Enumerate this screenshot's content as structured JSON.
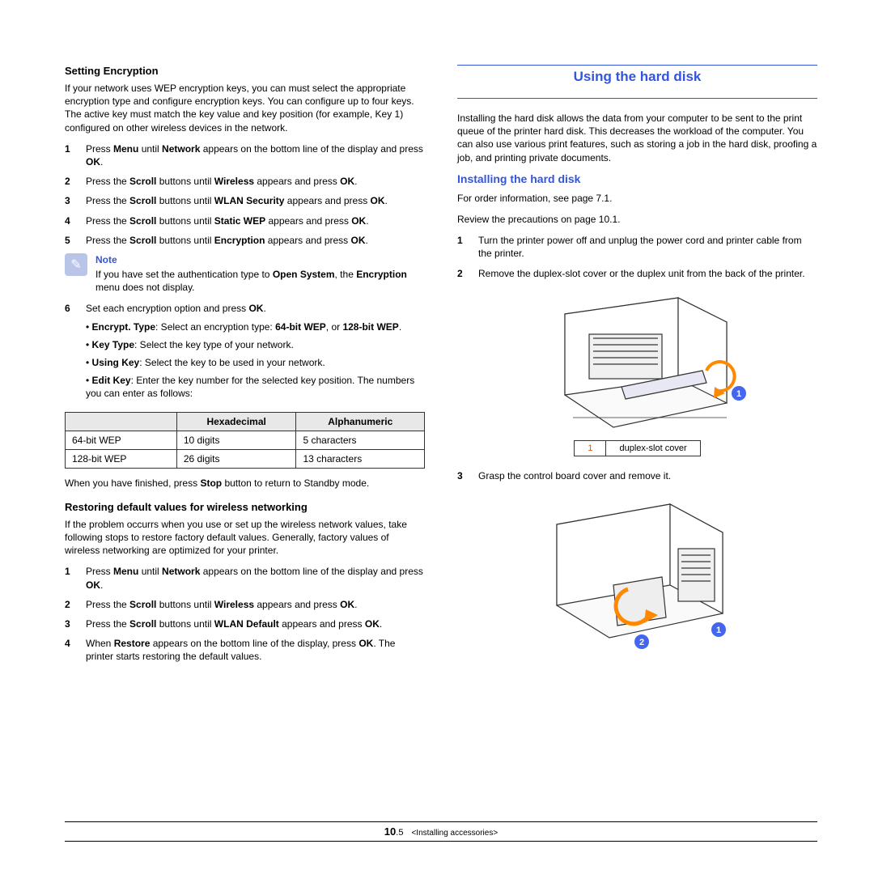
{
  "left": {
    "h_encryption": "Setting Encryption",
    "p_encryption": "If your network uses WEP encryption keys, you can must select the appropriate encryption type and configure encryption keys. You can configure up to four keys. The active key must match the key value and key position (for example, Key 1) configured on other wireless devices in the network.",
    "steps_a": [
      {
        "n": "1",
        "pre": "Press ",
        "b1": "Menu",
        "mid": " until ",
        "b2": "Network",
        "post": " appears on the bottom line of the display and press ",
        "b3": "OK",
        "end": "."
      },
      {
        "n": "2",
        "pre": "Press the ",
        "b1": "Scroll",
        "mid": " buttons until ",
        "b2": "Wireless",
        "post": " appears and press ",
        "b3": "OK",
        "end": "."
      },
      {
        "n": "3",
        "pre": "Press the ",
        "b1": "Scroll",
        "mid": " buttons until ",
        "b2": "WLAN Security",
        "post": " appears and press ",
        "b3": "OK",
        "end": "."
      },
      {
        "n": "4",
        "pre": "Press the ",
        "b1": "Scroll",
        "mid": " buttons until ",
        "b2": "Static WEP",
        "post": " appears and press ",
        "b3": "OK",
        "end": "."
      },
      {
        "n": "5",
        "pre": "Press the ",
        "b1": "Scroll",
        "mid": " buttons until ",
        "b2": "Encryption",
        "post": " appears and press ",
        "b3": "OK",
        "end": "."
      }
    ],
    "note_title": "Note",
    "note_body_pre": "If you have set the authentication type to ",
    "note_b1": "Open System",
    "note_body_mid": ", the ",
    "note_b2": "Encryption",
    "note_body_post": " menu does not display.",
    "step6_n": "6",
    "step6_text": "Set each encryption option and press ",
    "step6_b": "OK",
    "step6_end": ".",
    "bullets": [
      {
        "b1": "Encrypt. Type",
        "mid": ": Select an encryption type: ",
        "b2": "64-bit WEP",
        "mid2": ", or ",
        "b3": "128-bit WEP",
        "end": "."
      },
      {
        "b1": "Key Type",
        "mid": ": Select the key type of your network."
      },
      {
        "b1": "Using Key",
        "mid": ": Select the key to be used in your network."
      },
      {
        "b1": "Edit Key",
        "mid": ": Enter the key number for the selected key position. The numbers you can enter as follows:"
      }
    ],
    "table": {
      "cols": [
        "",
        "Hexadecimal",
        "Alphanumeric"
      ],
      "rows": [
        [
          "64-bit WEP",
          "10 digits",
          "5 characters"
        ],
        [
          "128-bit WEP",
          "26 digits",
          "13 characters"
        ]
      ]
    },
    "p_finish_pre": "When you have finished, press ",
    "p_finish_b": "Stop",
    "p_finish_post": " button to return to Standby mode.",
    "h_restore": "Restoring default values for wireless networking",
    "p_restore": "If the problem occurrs when you use or set up the wireless network values, take following stops to restore factory default values. Generally, factory values of wireless networking are optimized for your printer.",
    "steps_b": [
      {
        "n": "1",
        "pre": "Press ",
        "b1": "Menu",
        "mid": " until ",
        "b2": "Network",
        "post": " appears on the bottom line of the display and press ",
        "b3": "OK",
        "end": "."
      },
      {
        "n": "2",
        "pre": "Press the ",
        "b1": "Scroll",
        "mid": " buttons until ",
        "b2": "Wireless",
        "post": " appears and press ",
        "b3": "OK",
        "end": "."
      },
      {
        "n": "3",
        "pre": "Press the ",
        "b1": "Scroll",
        "mid": " buttons until ",
        "b2": "WLAN Default",
        "post": " appears and press ",
        "b3": "OK",
        "end": "."
      },
      {
        "n": "4",
        "pre": "When ",
        "b1": "Restore",
        "mid": " appears on the bottom line of the display, press ",
        "b2": "OK",
        "post": ". The printer starts restoring the default values."
      }
    ]
  },
  "right": {
    "h_using": "Using the hard disk",
    "p_using": "Installing the hard disk allows the data from your computer to be sent to the print queue of the printer hard disk. This decreases the workload of the computer. You can also use various print features, such as storing a job in the hard disk, proofing a job, and printing private documents.",
    "h_install": "Installing the hard disk",
    "p_order": "For order information, see page 7.1.",
    "p_review": "Review the precautions on page 10.1.",
    "steps": [
      {
        "n": "1",
        "t": "Turn the printer power off and unplug the power cord and printer cable from the printer."
      },
      {
        "n": "2",
        "t": "Remove the duplex-slot cover or the duplex unit from the back of the printer."
      }
    ],
    "callout": {
      "n": "1",
      "t": "duplex-slot cover"
    },
    "step3": {
      "n": "3",
      "t": "Grasp the control board cover and remove it."
    }
  },
  "footer": {
    "pg_b": "10",
    "pg_rest": ".5",
    "title": "<Installing accessories>"
  },
  "colors": {
    "blue": "#3355dd",
    "orange": "#e05a00",
    "callout_fill": "#4466ee"
  }
}
